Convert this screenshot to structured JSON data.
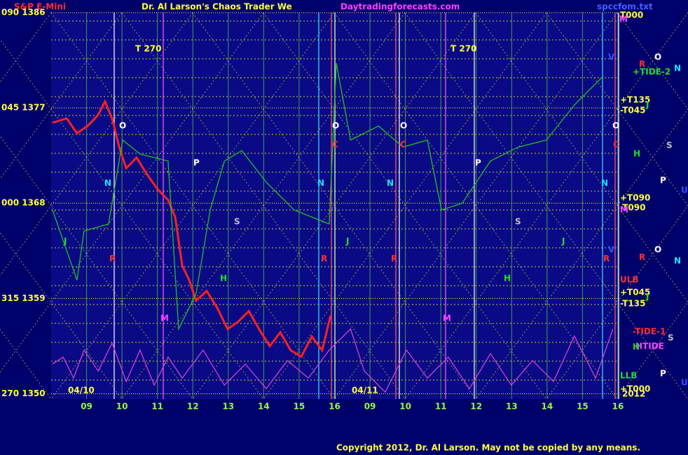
{
  "chart_data": {
    "type": "line",
    "symbol": "S&P E-Mini",
    "title": "Dr. Al Larson's Chaos Trader We",
    "subtitle": "Daytradingforecasts.com",
    "file": "spccfom.txt",
    "copyright": "Copyright 2012, Dr. Al Larson. May not be copied by any means.",
    "xlim": [
      0,
      16
    ],
    "xticks": [
      {
        "value": 1,
        "label": "09"
      },
      {
        "value": 2,
        "label": "10"
      },
      {
        "value": 3,
        "label": "11"
      },
      {
        "value": 4,
        "label": "12"
      },
      {
        "value": 5,
        "label": "13"
      },
      {
        "value": 6,
        "label": "14"
      },
      {
        "value": 7,
        "label": "15"
      },
      {
        "value": 8,
        "label": "16"
      },
      {
        "value": 9,
        "label": "09"
      },
      {
        "value": 10,
        "label": "10"
      },
      {
        "value": 11,
        "label": "11"
      },
      {
        "value": 12,
        "label": "12"
      },
      {
        "value": 13,
        "label": "13"
      },
      {
        "value": 14,
        "label": "14"
      },
      {
        "value": 15,
        "label": "15"
      },
      {
        "value": 16,
        "label": "16"
      }
    ],
    "ylim": [
      1349.5,
      1386
    ],
    "yticks": [
      {
        "value": 1386,
        "label": "090 1386"
      },
      {
        "value": 1377,
        "label": "045 1377"
      },
      {
        "value": 1368,
        "label": "000 1368"
      },
      {
        "value": 1359,
        "label": "315 1359"
      },
      {
        "value": 1350,
        "label": "270 1350"
      }
    ],
    "grid": true,
    "series": [
      {
        "color": "#ff2020",
        "x": [
          0.04,
          0.44,
          0.73,
          1.03,
          1.32,
          1.52,
          1.72,
          1.92,
          2.12,
          2.41,
          2.71,
          3.01,
          3.3,
          3.5,
          3.7,
          3.9,
          4.09,
          4.39,
          4.69,
          4.98,
          5.28,
          5.58,
          5.87,
          6.17,
          6.47,
          6.76,
          7.06,
          7.36,
          7.65,
          7.89
        ],
        "values": [
          1375.6,
          1376.0,
          1374.6,
          1375.3,
          1376.3,
          1377.6,
          1376.0,
          1373.3,
          1371.3,
          1372.3,
          1370.7,
          1369.3,
          1368.3,
          1366.7,
          1362.1,
          1360.7,
          1358.8,
          1359.7,
          1358.1,
          1356.1,
          1356.8,
          1357.8,
          1356.1,
          1354.5,
          1355.8,
          1354.1,
          1353.5,
          1355.4,
          1354.1,
          1357.4
        ]
      },
      {
        "color": "#20c020",
        "x": [
          0.04,
          0.73,
          0.93,
          1.62,
          2.02,
          2.51,
          3.3,
          3.6,
          4.09,
          4.49,
          4.89,
          5.38,
          6.07,
          6.86,
          7.85,
          8.05,
          8.45,
          9.24,
          9.93,
          10.62,
          11.02,
          11.61,
          12.4,
          13.19,
          13.98,
          14.77,
          15.56
        ],
        "values": [
          1367.35,
          1360.74,
          1365.37,
          1366.03,
          1373.96,
          1372.64,
          1371.98,
          1356.11,
          1359.41,
          1367.35,
          1371.98,
          1372.97,
          1369.99,
          1367.35,
          1366.03,
          1381.24,
          1373.96,
          1375.29,
          1373.3,
          1373.96,
          1367.35,
          1368.01,
          1371.98,
          1373.3,
          1373.96,
          1377.27,
          1379.92
        ]
      },
      {
        "color": "#d040d0",
        "x": [
          0.04,
          0.34,
          0.63,
          0.93,
          1.33,
          1.72,
          2.12,
          2.51,
          2.91,
          3.3,
          3.7,
          4.29,
          4.89,
          5.48,
          6.07,
          6.67,
          7.26,
          7.85,
          8.45,
          8.84,
          9.43,
          10.03,
          10.62,
          11.21,
          11.81,
          12.4,
          12.99,
          13.59,
          14.18,
          14.77,
          15.37,
          15.86
        ],
        "values": [
          1352.8,
          1353.46,
          1351.48,
          1354.12,
          1352.14,
          1354.78,
          1351.15,
          1354.12,
          1350.81,
          1353.46,
          1351.48,
          1354.12,
          1350.81,
          1352.8,
          1350.48,
          1353.13,
          1351.48,
          1354.12,
          1356.11,
          1352.14,
          1350.15,
          1354.12,
          1351.48,
          1353.46,
          1350.48,
          1353.79,
          1350.81,
          1353.13,
          1351.15,
          1355.45,
          1351.48,
          1356.11
        ]
      }
    ],
    "annotations": [
      "T000",
      "M",
      "V",
      "R",
      "O",
      "N",
      "+TIDE-2",
      "+T135",
      "-T045",
      "J",
      "C",
      "H",
      "S",
      "P",
      "U",
      "+T090",
      "-T090",
      "M",
      "V",
      "R",
      "O",
      "N",
      "ULB",
      "+T045",
      "J",
      "-T135",
      "-TIDE-1",
      "S",
      "HTIDE",
      "H",
      "P",
      "LLB",
      "U",
      "+T000",
      "2012",
      "T  270",
      "T  270",
      "O",
      "O",
      "O",
      "O",
      "C",
      "C",
      "N",
      "N",
      "N",
      "N",
      "P",
      "P",
      "S",
      "S",
      "J",
      "J",
      "J",
      "R",
      "R",
      "R",
      "R",
      "H",
      "H",
      "M",
      "M",
      "04/10",
      "04/11"
    ]
  }
}
